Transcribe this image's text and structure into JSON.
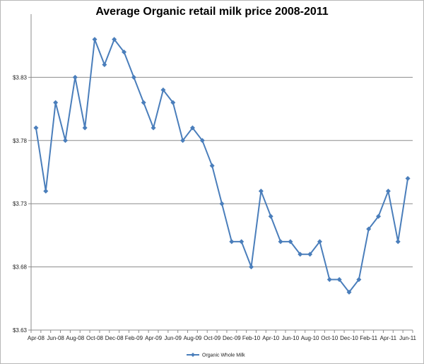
{
  "chart_data": {
    "type": "line",
    "title": "Average Organic retail milk price 2008-2011",
    "xlabel": "",
    "ylabel": "",
    "ylim": [
      3.63,
      3.88
    ],
    "yticks": [
      3.63,
      3.68,
      3.73,
      3.78,
      3.83
    ],
    "ytick_labels": [
      "$3.63",
      "$3.68",
      "$3.73",
      "$3.78",
      "$3.83"
    ],
    "xtick_labels": [
      "Apr-08",
      "Jun-08",
      "Aug-08",
      "Oct-08",
      "Dec-08",
      "Feb-09",
      "Apr-09",
      "Jun-09",
      "Aug-09",
      "Oct-09",
      "Dec-09",
      "Feb-10",
      "Apr-10",
      "Jun-10",
      "Aug-10",
      "Oct-10",
      "Dec-10",
      "Feb-11",
      "Apr-11",
      "Jun-11"
    ],
    "categories": [
      "Apr-08",
      "May-08",
      "Jun-08",
      "Jul-08",
      "Aug-08",
      "Sep-08",
      "Oct-08",
      "Nov-08",
      "Dec-08",
      "Jan-09",
      "Feb-09",
      "Mar-09",
      "Apr-09",
      "May-09",
      "Jun-09",
      "Jul-09",
      "Aug-09",
      "Sep-09",
      "Oct-09",
      "Nov-09",
      "Dec-09",
      "Jan-10",
      "Feb-10",
      "Mar-10",
      "Apr-10",
      "May-10",
      "Jun-10",
      "Jul-10",
      "Aug-10",
      "Sep-10",
      "Oct-10",
      "Nov-10",
      "Dec-10",
      "Jan-11",
      "Feb-11",
      "Mar-11",
      "Apr-11",
      "May-11",
      "Jun-11"
    ],
    "series": [
      {
        "name": "Organic Whole Milk",
        "color": "#4a7ebb",
        "values": [
          3.79,
          3.74,
          3.81,
          3.78,
          3.83,
          3.79,
          3.86,
          3.84,
          3.86,
          3.85,
          3.83,
          3.81,
          3.79,
          3.82,
          3.81,
          3.78,
          3.79,
          3.78,
          3.76,
          3.73,
          3.7,
          3.7,
          3.68,
          3.74,
          3.72,
          3.7,
          3.7,
          3.69,
          3.69,
          3.7,
          3.67,
          3.67,
          3.66,
          3.67,
          3.71,
          3.72,
          3.74,
          3.7,
          3.75
        ]
      }
    ],
    "grid": true,
    "legend_position": "bottom"
  }
}
